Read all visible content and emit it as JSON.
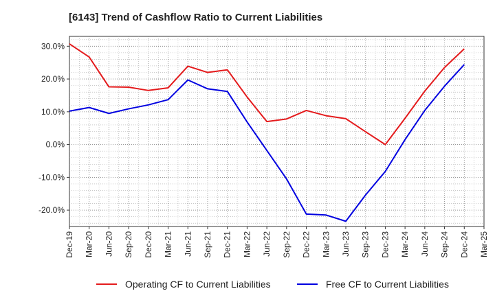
{
  "chart_data": {
    "type": "line",
    "title": "[6143]  Trend of Cashflow Ratio to Current Liabilities",
    "xlabel": "",
    "ylabel": "",
    "x": [
      "Dec-19",
      "Mar-20",
      "Jun-20",
      "Sep-20",
      "Dec-20",
      "Mar-21",
      "Jun-21",
      "Sep-21",
      "Dec-21",
      "Mar-22",
      "Jun-22",
      "Sep-22",
      "Dec-22",
      "Mar-23",
      "Jun-23",
      "Sep-23",
      "Dec-23",
      "Mar-24",
      "Jun-24",
      "Sep-24",
      "Dec-24",
      "Mar-25"
    ],
    "x_tick_labels": [
      "Dec-19",
      "Mar-20",
      "Jun-20",
      "Sep-20",
      "Dec-20",
      "Mar-21",
      "Jun-21",
      "Sep-21",
      "Dec-21",
      "Mar-22",
      "Jun-22",
      "Sep-22",
      "Dec-22",
      "Mar-23",
      "Jun-23",
      "Sep-23",
      "Dec-23",
      "Mar-24",
      "Jun-24",
      "Sep-24",
      "Dec-24",
      "Mar-25"
    ],
    "y_ticks": [
      30,
      20,
      10,
      0,
      -10,
      -20
    ],
    "y_tick_labels": [
      "30.0%",
      "20.0%",
      "10.0%",
      "0.0%",
      "-10.0%",
      "-20.0%"
    ],
    "ylim": [
      -25,
      33
    ],
    "grid": true,
    "legend_position": "bottom",
    "series": [
      {
        "name": "Operating CF to Current Liabilities",
        "color": "#e41a1c",
        "values": [
          30.7,
          26.7,
          17.6,
          17.5,
          16.5,
          17.3,
          23.9,
          22.0,
          22.8,
          14.5,
          7.0,
          7.8,
          10.4,
          8.8,
          7.9,
          3.9,
          0.0,
          8.0,
          16.3,
          23.5,
          29.2,
          null
        ]
      },
      {
        "name": "Free CF to Current Liabilities",
        "color": "#0000e0",
        "values": [
          10.2,
          11.3,
          9.5,
          10.9,
          12.1,
          13.7,
          19.7,
          17.0,
          16.2,
          6.9,
          -1.8,
          -10.5,
          -21.2,
          -21.5,
          -23.4,
          -15.4,
          -8.2,
          1.5,
          10.4,
          17.8,
          24.4,
          null
        ]
      }
    ]
  }
}
